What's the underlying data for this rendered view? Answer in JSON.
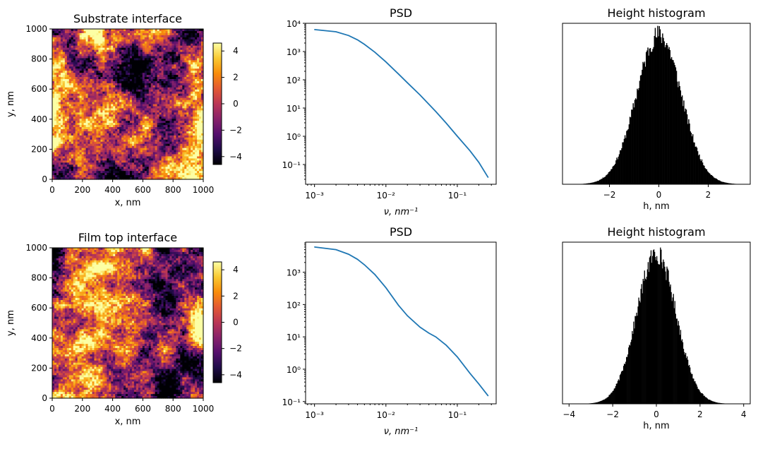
{
  "chart_data": [
    {
      "type": "heatmap",
      "title": "Substrate interface",
      "xlabel": "x, nm",
      "ylabel": "y, nm",
      "xlim": [
        0,
        1000
      ],
      "ylim": [
        0,
        1000
      ],
      "xticks": [
        "0",
        "200",
        "400",
        "600",
        "800",
        "1000"
      ],
      "yticks": [
        "0",
        "200",
        "400",
        "600",
        "800",
        "1000"
      ],
      "colormap": "inferno",
      "colorbar": {
        "ticks": [
          "4",
          "2",
          "0",
          "−2",
          "−4"
        ],
        "range": [
          -4.6,
          4.6
        ]
      },
      "seed": 7
    },
    {
      "type": "line",
      "title": "PSD",
      "xlabel": "ν, nm⁻¹",
      "xscale": "log",
      "yscale": "log",
      "xlim": [
        0.00075,
        0.35
      ],
      "ylim": [
        0.02,
        10000
      ],
      "xticks": [
        {
          "v": 0.001,
          "label": "10⁻³"
        },
        {
          "v": 0.01,
          "label": "10⁻²"
        },
        {
          "v": 0.1,
          "label": "10⁻¹"
        }
      ],
      "yticks": [
        {
          "v": 10000,
          "label": "10⁴"
        },
        {
          "v": 1000,
          "label": "10³"
        },
        {
          "v": 100,
          "label": "10²"
        },
        {
          "v": 10,
          "label": "10¹"
        },
        {
          "v": 1,
          "label": "10⁰"
        },
        {
          "v": 0.1,
          "label": "10⁻¹"
        }
      ],
      "color": "#1f77b4",
      "x": [
        0.001,
        0.002,
        0.003,
        0.004,
        0.005,
        0.007,
        0.01,
        0.015,
        0.02,
        0.03,
        0.05,
        0.07,
        0.1,
        0.15,
        0.2,
        0.27
      ],
      "y": [
        6000,
        5000,
        3700,
        2600,
        1800,
        950,
        430,
        160,
        78,
        29,
        7.5,
        2.9,
        1.0,
        0.31,
        0.12,
        0.035
      ]
    },
    {
      "type": "bar",
      "title": "Height histogram",
      "xlabel": "h, nm",
      "xlim": [
        -3.9,
        3.7
      ],
      "xticks": [
        {
          "v": -2,
          "label": "−2"
        },
        {
          "v": 0,
          "label": "0"
        },
        {
          "v": 2,
          "label": "2"
        }
      ],
      "mean": 0.0,
      "sigma": 0.9,
      "peak_fraction": 0.93,
      "bins": 260,
      "color": "#000000",
      "seed": 11
    },
    {
      "type": "heatmap",
      "title": "Film top interface",
      "xlabel": "x, nm",
      "ylabel": "y, nm",
      "xlim": [
        0,
        1000
      ],
      "ylim": [
        0,
        1000
      ],
      "xticks": [
        "0",
        "200",
        "400",
        "600",
        "800",
        "1000"
      ],
      "yticks": [
        "0",
        "200",
        "400",
        "600",
        "800",
        "1000"
      ],
      "colormap": "inferno",
      "colorbar": {
        "ticks": [
          "4",
          "2",
          "0",
          "−2",
          "−4"
        ],
        "range": [
          -4.6,
          4.6
        ]
      },
      "seed": 13
    },
    {
      "type": "line",
      "title": "PSD",
      "xlabel": "ν, nm⁻¹",
      "xscale": "log",
      "yscale": "log",
      "xlim": [
        0.00075,
        0.35
      ],
      "ylim": [
        0.085,
        8500
      ],
      "xticks": [
        {
          "v": 0.001,
          "label": "10⁻³"
        },
        {
          "v": 0.01,
          "label": "10⁻²"
        },
        {
          "v": 0.1,
          "label": "10⁻¹"
        }
      ],
      "yticks": [
        {
          "v": 1000,
          "label": "10³"
        },
        {
          "v": 100,
          "label": "10²"
        },
        {
          "v": 10,
          "label": "10¹"
        },
        {
          "v": 1,
          "label": "10⁰"
        },
        {
          "v": 0.1,
          "label": "10⁻¹"
        }
      ],
      "color": "#1f77b4",
      "x": [
        0.001,
        0.002,
        0.003,
        0.004,
        0.005,
        0.007,
        0.01,
        0.015,
        0.02,
        0.03,
        0.04,
        0.05,
        0.07,
        0.1,
        0.15,
        0.2,
        0.27
      ],
      "y": [
        6000,
        5000,
        3600,
        2500,
        1700,
        850,
        330,
        95,
        45,
        20,
        13,
        10,
        5.5,
        2.4,
        0.75,
        0.35,
        0.15
      ]
    },
    {
      "type": "bar",
      "title": "Height histogram",
      "xlabel": "h, nm",
      "xlim": [
        -4.3,
        4.3
      ],
      "xticks": [
        {
          "v": -4,
          "label": "−4"
        },
        {
          "v": -2,
          "label": "−2"
        },
        {
          "v": 0,
          "label": "0"
        },
        {
          "v": 2,
          "label": "2"
        },
        {
          "v": 4,
          "label": "4"
        }
      ],
      "mean": 0.0,
      "sigma": 0.9,
      "peak_fraction": 0.93,
      "bins": 260,
      "color": "#000000",
      "seed": 17
    }
  ]
}
